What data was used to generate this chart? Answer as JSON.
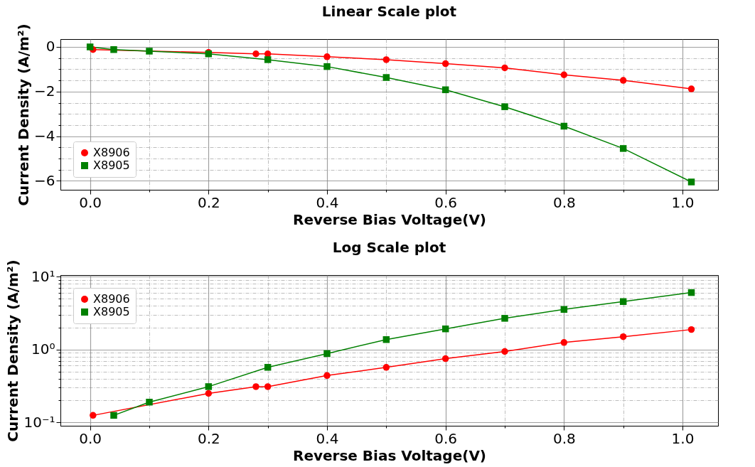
{
  "chart_data": [
    {
      "type": "line",
      "title": "Linear Scale plot",
      "xlabel": "Reverse Bias Voltage(V)",
      "ylabel": "Current Density (A/m²)",
      "legend": "bottom left",
      "grid": true,
      "xlim": [
        -0.05,
        1.06
      ],
      "xticks": [
        {
          "value": 0,
          "label": "0.0"
        },
        {
          "value": 0.1,
          "label": null
        },
        {
          "value": 0.2,
          "label": "0.2"
        },
        {
          "value": 0.3,
          "label": null
        },
        {
          "value": 0.4,
          "label": "0.4"
        },
        {
          "value": 0.5,
          "label": null
        },
        {
          "value": 0.6,
          "label": "0.6"
        },
        {
          "value": 0.7,
          "label": null
        },
        {
          "value": 0.8,
          "label": "0.8"
        },
        {
          "value": 0.9,
          "label": null
        },
        {
          "value": 1,
          "label": "1.0"
        }
      ],
      "ylim": [
        -6.4,
        0.35
      ],
      "yticks": [
        {
          "value": -6,
          "label": "−6"
        },
        {
          "value": -5.5,
          "label": null
        },
        {
          "value": -5,
          "label": null
        },
        {
          "value": -4.5,
          "label": null
        },
        {
          "value": -4,
          "label": "−4"
        },
        {
          "value": -3.5,
          "label": null
        },
        {
          "value": -3,
          "label": null
        },
        {
          "value": -2.5,
          "label": null
        },
        {
          "value": -2,
          "label": "−2"
        },
        {
          "value": -1.5,
          "label": null
        },
        {
          "value": -1,
          "label": null
        },
        {
          "value": -0.5,
          "label": null
        },
        0
      ],
      "series": [
        {
          "name": "X8906",
          "color": "#ff0000",
          "marker": "circle",
          "x": [
            0.005,
            0.2,
            0.28,
            0.3,
            0.4,
            0.5,
            0.6,
            0.7,
            0.8,
            0.9,
            1.015
          ],
          "values": [
            -0.12,
            -0.25,
            -0.31,
            -0.31,
            -0.44,
            -0.57,
            -0.75,
            -0.94,
            -1.25,
            -1.5,
            -1.88
          ]
        },
        {
          "name": "X8905",
          "color": "#008000",
          "marker": "square",
          "x": [
            0,
            0.04,
            0.1,
            0.2,
            0.3,
            0.4,
            0.5,
            0.6,
            0.7,
            0.8,
            0.9,
            1.015
          ],
          "values": [
            0,
            -0.12,
            -0.19,
            -0.31,
            -0.57,
            -0.88,
            -1.37,
            -1.92,
            -2.68,
            -3.55,
            -4.55,
            -6.05
          ]
        }
      ]
    },
    {
      "type": "line",
      "title": "Log Scale plot",
      "xlabel": "Reverse Bias Voltage(V)",
      "ylabel": "Current Density (A/m²)",
      "legend": "top left",
      "grid": true,
      "log": "y",
      "xlim": [
        -0.05,
        1.06
      ],
      "xticks": [
        {
          "value": 0,
          "label": "0.0"
        },
        {
          "value": 0.1,
          "label": null
        },
        {
          "value": 0.2,
          "label": "0.2"
        },
        {
          "value": 0.3,
          "label": null
        },
        {
          "value": 0.4,
          "label": "0.4"
        },
        {
          "value": 0.5,
          "label": null
        },
        {
          "value": 0.6,
          "label": "0.6"
        },
        {
          "value": 0.7,
          "label": null
        },
        {
          "value": 0.8,
          "label": "0.8"
        },
        {
          "value": 0.9,
          "label": null
        },
        {
          "value": 1,
          "label": "1.0"
        }
      ],
      "ylim": [
        0.09,
        10.5
      ],
      "yticks": [
        {
          "value": 0.1,
          "label": "10⁻¹"
        },
        {
          "value": 0.2,
          "label": null
        },
        {
          "value": 0.3,
          "label": null
        },
        {
          "value": 0.4,
          "label": null
        },
        {
          "value": 0.5,
          "label": null
        },
        {
          "value": 0.6,
          "label": null
        },
        {
          "value": 0.7,
          "label": null
        },
        {
          "value": 0.8,
          "label": null
        },
        {
          "value": 0.9,
          "label": null
        },
        {
          "value": 1,
          "label": "10⁰"
        },
        {
          "value": 2,
          "label": null
        },
        {
          "value": 3,
          "label": null
        },
        {
          "value": 4,
          "label": null
        },
        {
          "value": 5,
          "label": null
        },
        {
          "value": 6,
          "label": null
        },
        {
          "value": 7,
          "label": null
        },
        {
          "value": 8,
          "label": null
        },
        {
          "value": 9,
          "label": null
        },
        {
          "value": 10,
          "label": "10¹"
        }
      ],
      "series": [
        {
          "name": "X8906",
          "color": "#ff0000",
          "marker": "circle",
          "x": [
            0.005,
            0.2,
            0.28,
            0.3,
            0.4,
            0.5,
            0.6,
            0.7,
            0.8,
            0.9,
            1.015
          ],
          "values": [
            0.125,
            0.25,
            0.31,
            0.31,
            0.44,
            0.57,
            0.75,
            0.94,
            1.25,
            1.5,
            1.88
          ]
        },
        {
          "name": "X8905",
          "color": "#008000",
          "marker": "square",
          "x": [
            0.04,
            0.1,
            0.2,
            0.3,
            0.4,
            0.5,
            0.6,
            0.7,
            0.8,
            0.9,
            1.015
          ],
          "values": [
            0.125,
            0.19,
            0.31,
            0.57,
            0.88,
            1.37,
            1.92,
            2.68,
            3.55,
            4.55,
            6.05
          ]
        }
      ]
    }
  ]
}
